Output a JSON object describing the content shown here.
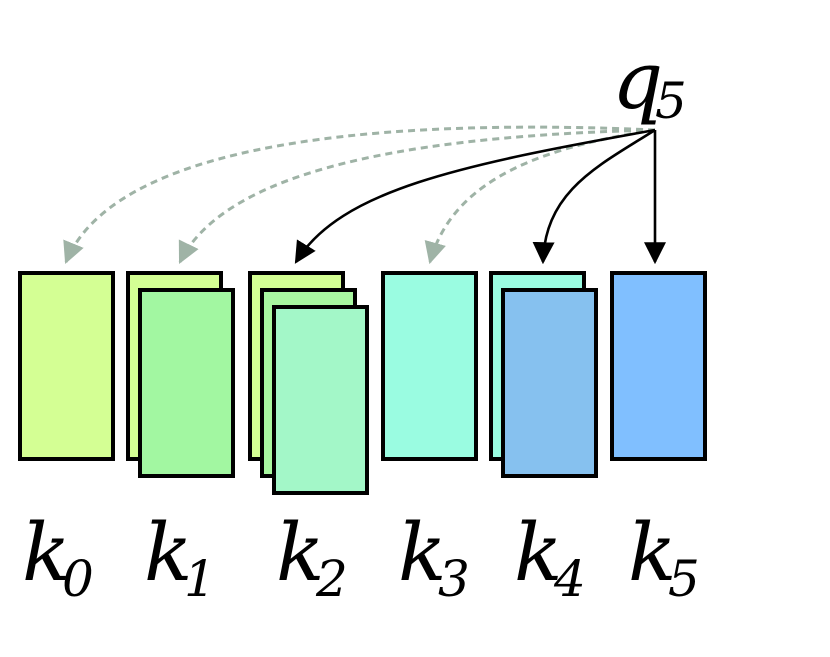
{
  "query": {
    "base": "q",
    "sub": "5"
  },
  "keys": [
    {
      "base": "k",
      "sub": "0"
    },
    {
      "base": "k",
      "sub": "1"
    },
    {
      "base": "k",
      "sub": "2"
    },
    {
      "base": "k",
      "sub": "3"
    },
    {
      "base": "k",
      "sub": "4"
    },
    {
      "base": "k",
      "sub": "5"
    }
  ],
  "colors": {
    "k0": "#d4ff94",
    "k1_back": "#d4ff94",
    "k1_front": "#a2f7a1",
    "k2_back": "#d4ff94",
    "k2_mid": "#a8f7a0",
    "k2_front": "#a3f7c8",
    "k3": "#9afce1",
    "k4_back": "#9afce1",
    "k4_front": "#86c1ef",
    "k5": "#80bfff",
    "dashed_arrow": "#9fb3a6",
    "solid_arrow": "#000000"
  }
}
